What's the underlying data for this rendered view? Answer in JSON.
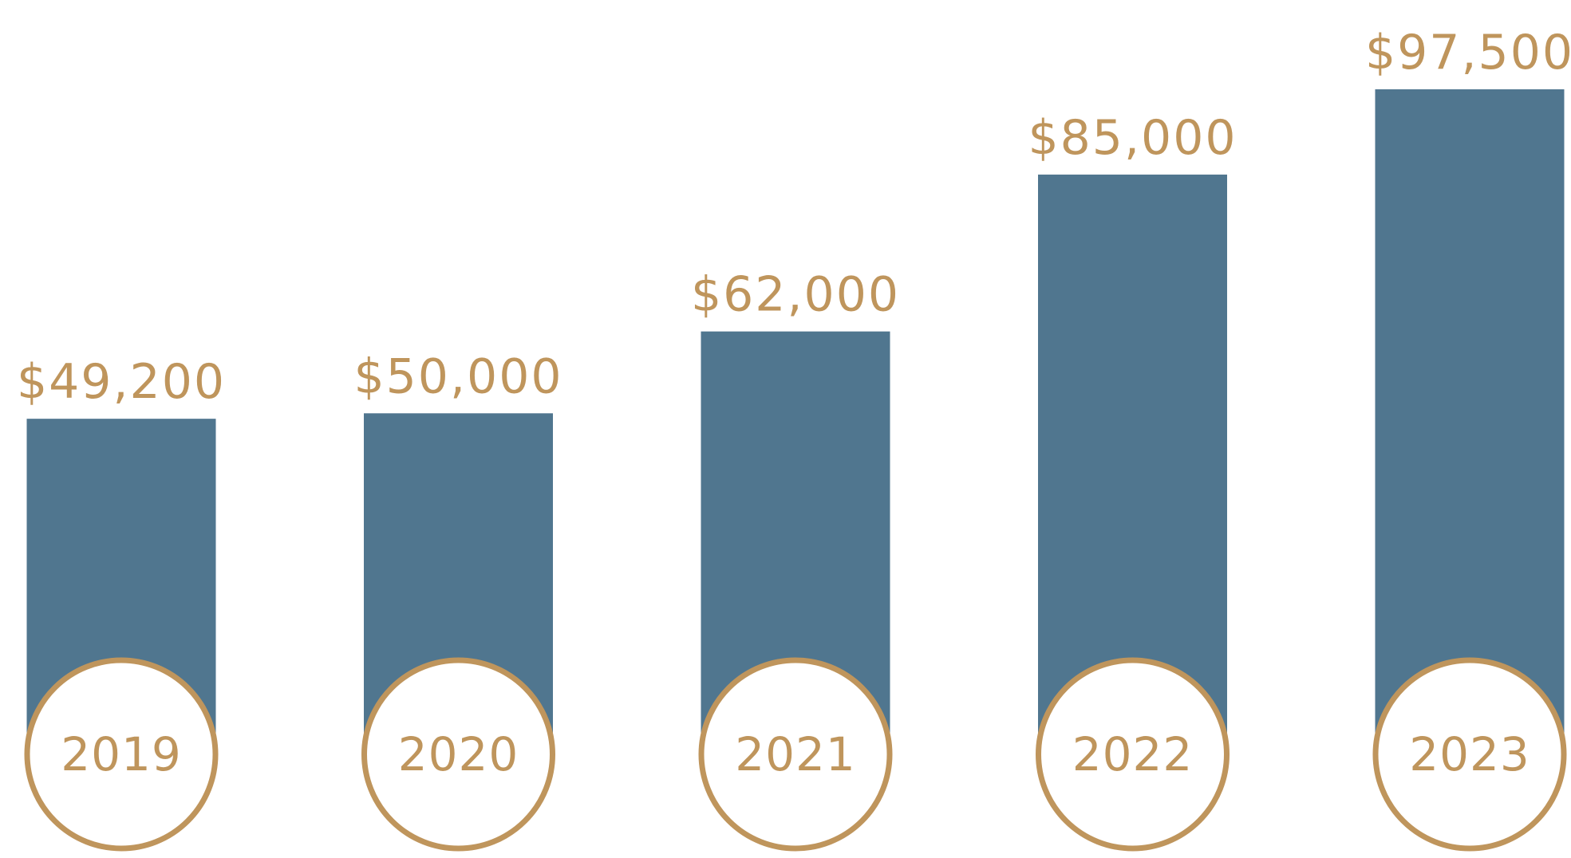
{
  "chart_data": {
    "type": "bar",
    "categories": [
      "2019",
      "2020",
      "2021",
      "2022",
      "2023"
    ],
    "values": [
      49200,
      50000,
      62000,
      85000,
      97500
    ],
    "value_labels": [
      "$49,200",
      "$50,000",
      "$62,000",
      "$85,000",
      "$97,500"
    ],
    "color": "#50768f",
    "label_color": "#bf955c"
  }
}
